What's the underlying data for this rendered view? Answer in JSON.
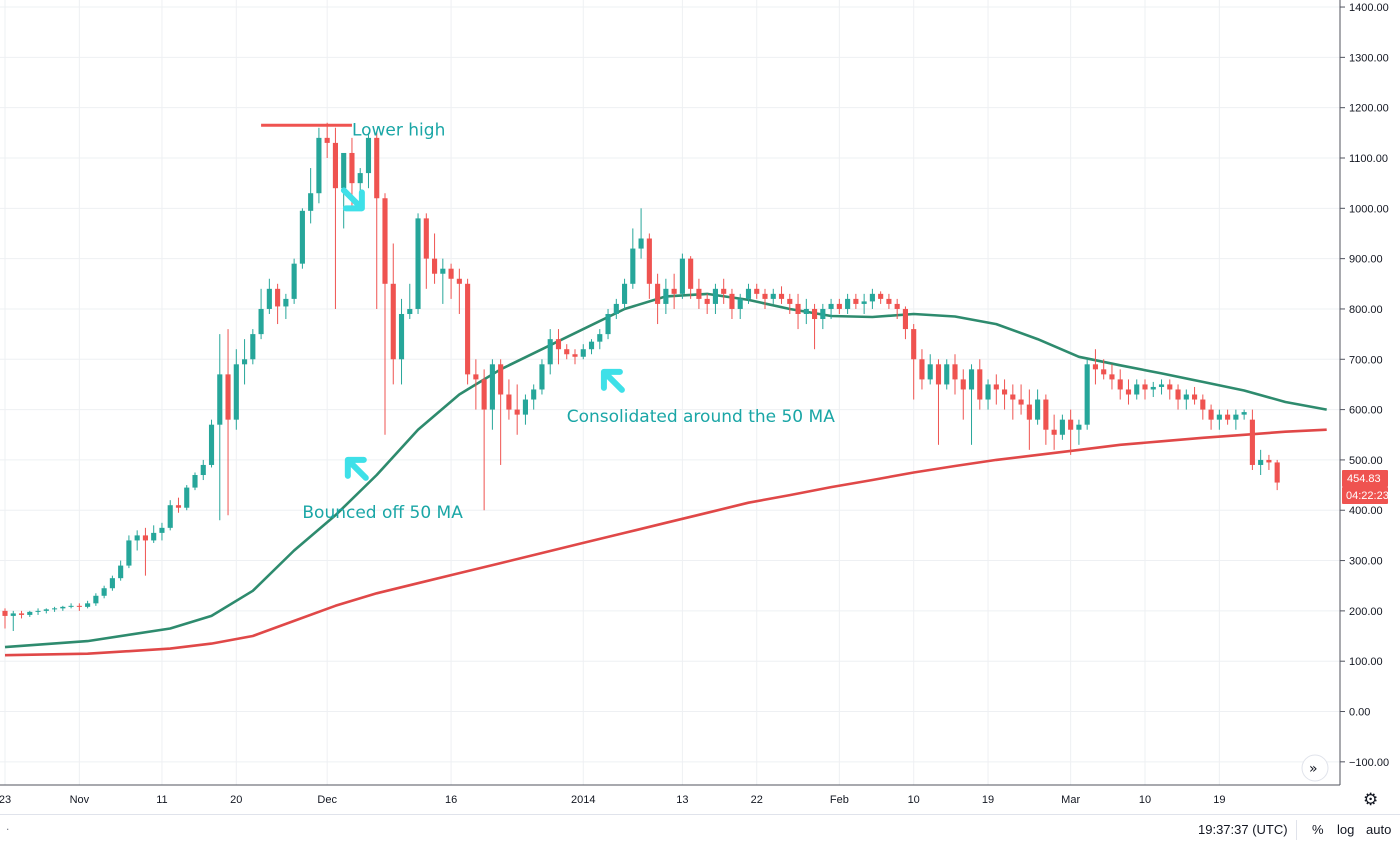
{
  "chart_data": {
    "type": "candlestick",
    "title": "",
    "y_ticks": [
      1400,
      1300,
      1200,
      1100,
      1000,
      900,
      800,
      700,
      600,
      500,
      400,
      300,
      200,
      100,
      0,
      -100
    ],
    "y_tick_labels": [
      "1400.00",
      "1300.00",
      "1200.00",
      "1100.00",
      "1000.00",
      "900.00",
      "800.00",
      "700.00",
      "600.00",
      "500.00",
      "400.00",
      "300.00",
      "200.00",
      "100.00",
      "0.00",
      "−100.00"
    ],
    "ylim": [
      -150,
      1410
    ],
    "x_index_range": [
      0,
      161
    ],
    "x_ticks": [
      {
        "label": "23",
        "index": 0
      },
      {
        "label": "Nov",
        "index": 9
      },
      {
        "label": "11",
        "index": 19
      },
      {
        "label": "20",
        "index": 28
      },
      {
        "label": "Dec",
        "index": 39
      },
      {
        "label": "16",
        "index": 54
      },
      {
        "label": "2014",
        "index": 70
      },
      {
        "label": "13",
        "index": 82
      },
      {
        "label": "22",
        "index": 91
      },
      {
        "label": "Feb",
        "index": 101
      },
      {
        "label": "10",
        "index": 110
      },
      {
        "label": "19",
        "index": 119
      },
      {
        "label": "Mar",
        "index": 129
      },
      {
        "label": "10",
        "index": 138
      },
      {
        "label": "19",
        "index": 147
      }
    ],
    "candles": [
      [
        200,
        205,
        165,
        190
      ],
      [
        190,
        200,
        160,
        195
      ],
      [
        195,
        200,
        185,
        192
      ],
      [
        192,
        200,
        188,
        198
      ],
      [
        198,
        205,
        192,
        200
      ],
      [
        200,
        205,
        195,
        203
      ],
      [
        203,
        208,
        198,
        205
      ],
      [
        205,
        210,
        200,
        208
      ],
      [
        208,
        215,
        205,
        210
      ],
      [
        210,
        215,
        200,
        208
      ],
      [
        208,
        220,
        205,
        215
      ],
      [
        215,
        235,
        210,
        230
      ],
      [
        230,
        250,
        225,
        245
      ],
      [
        245,
        270,
        240,
        265
      ],
      [
        265,
        300,
        260,
        290
      ],
      [
        290,
        350,
        285,
        340
      ],
      [
        340,
        360,
        320,
        350
      ],
      [
        350,
        365,
        270,
        340
      ],
      [
        340,
        370,
        335,
        355
      ],
      [
        355,
        375,
        340,
        365
      ],
      [
        365,
        420,
        360,
        410
      ],
      [
        410,
        425,
        395,
        405
      ],
      [
        405,
        450,
        400,
        445
      ],
      [
        445,
        475,
        440,
        470
      ],
      [
        470,
        500,
        460,
        490
      ],
      [
        490,
        580,
        485,
        570
      ],
      [
        570,
        750,
        380,
        670
      ],
      [
        670,
        760,
        390,
        580
      ],
      [
        580,
        720,
        560,
        690
      ],
      [
        690,
        740,
        650,
        700
      ],
      [
        700,
        760,
        690,
        750
      ],
      [
        750,
        840,
        740,
        800
      ],
      [
        800,
        860,
        790,
        840
      ],
      [
        840,
        850,
        770,
        805
      ],
      [
        805,
        830,
        780,
        820
      ],
      [
        820,
        900,
        810,
        890
      ],
      [
        890,
        1000,
        880,
        995
      ],
      [
        995,
        1080,
        970,
        1030
      ],
      [
        1030,
        1160,
        1010,
        1140
      ],
      [
        1140,
        1170,
        1100,
        1130
      ],
      [
        1130,
        1160,
        800,
        1040
      ],
      [
        1040,
        1100,
        960,
        1110
      ],
      [
        1110,
        1140,
        1000,
        1050
      ],
      [
        1050,
        1080,
        1000,
        1070
      ],
      [
        1070,
        1150,
        1040,
        1140
      ],
      [
        1140,
        1150,
        800,
        1020
      ],
      [
        1020,
        1030,
        550,
        850
      ],
      [
        850,
        930,
        650,
        700
      ],
      [
        700,
        820,
        650,
        790
      ],
      [
        790,
        850,
        780,
        800
      ],
      [
        800,
        990,
        790,
        980
      ],
      [
        980,
        990,
        840,
        900
      ],
      [
        900,
        950,
        850,
        870
      ],
      [
        870,
        900,
        810,
        880
      ],
      [
        880,
        890,
        820,
        860
      ],
      [
        860,
        880,
        790,
        850
      ],
      [
        850,
        860,
        650,
        670
      ],
      [
        670,
        700,
        600,
        660
      ],
      [
        660,
        680,
        400,
        600
      ],
      [
        600,
        700,
        560,
        690
      ],
      [
        690,
        700,
        490,
        630
      ],
      [
        630,
        660,
        580,
        600
      ],
      [
        600,
        650,
        550,
        590
      ],
      [
        590,
        630,
        570,
        620
      ],
      [
        620,
        650,
        600,
        640
      ],
      [
        640,
        700,
        630,
        690
      ],
      [
        690,
        760,
        670,
        740
      ],
      [
        740,
        760,
        690,
        720
      ],
      [
        720,
        730,
        700,
        710
      ],
      [
        710,
        720,
        690,
        705
      ],
      [
        705,
        730,
        700,
        720
      ],
      [
        720,
        740,
        710,
        735
      ],
      [
        735,
        760,
        720,
        750
      ],
      [
        750,
        800,
        740,
        790
      ],
      [
        790,
        820,
        780,
        810
      ],
      [
        810,
        860,
        800,
        850
      ],
      [
        850,
        960,
        840,
        920
      ],
      [
        920,
        1000,
        900,
        940
      ],
      [
        940,
        950,
        820,
        850
      ],
      [
        850,
        870,
        770,
        810
      ],
      [
        810,
        860,
        790,
        840
      ],
      [
        840,
        870,
        800,
        830
      ],
      [
        830,
        910,
        820,
        900
      ],
      [
        900,
        905,
        820,
        840
      ],
      [
        840,
        860,
        800,
        820
      ],
      [
        820,
        830,
        790,
        810
      ],
      [
        810,
        850,
        790,
        840
      ],
      [
        840,
        860,
        810,
        830
      ],
      [
        830,
        840,
        780,
        800
      ],
      [
        800,
        830,
        780,
        820
      ],
      [
        820,
        850,
        810,
        840
      ],
      [
        840,
        850,
        820,
        830
      ],
      [
        830,
        840,
        800,
        820
      ],
      [
        820,
        840,
        810,
        830
      ],
      [
        830,
        845,
        810,
        820
      ],
      [
        820,
        830,
        790,
        810
      ],
      [
        810,
        830,
        760,
        790
      ],
      [
        790,
        820,
        770,
        800
      ],
      [
        800,
        810,
        720,
        780
      ],
      [
        780,
        810,
        760,
        800
      ],
      [
        800,
        820,
        780,
        810
      ],
      [
        810,
        820,
        790,
        800
      ],
      [
        800,
        830,
        790,
        820
      ],
      [
        820,
        830,
        800,
        810
      ],
      [
        810,
        830,
        790,
        815
      ],
      [
        815,
        840,
        800,
        830
      ],
      [
        830,
        835,
        810,
        820
      ],
      [
        820,
        830,
        800,
        810
      ],
      [
        810,
        820,
        780,
        800
      ],
      [
        800,
        805,
        740,
        760
      ],
      [
        760,
        770,
        620,
        700
      ],
      [
        700,
        720,
        640,
        660
      ],
      [
        660,
        710,
        650,
        690
      ],
      [
        690,
        700,
        530,
        650
      ],
      [
        650,
        700,
        640,
        690
      ],
      [
        690,
        710,
        630,
        660
      ],
      [
        660,
        680,
        580,
        640
      ],
      [
        640,
        690,
        530,
        680
      ],
      [
        680,
        700,
        600,
        620
      ],
      [
        620,
        660,
        600,
        650
      ],
      [
        650,
        670,
        610,
        640
      ],
      [
        640,
        660,
        600,
        630
      ],
      [
        630,
        650,
        580,
        620
      ],
      [
        620,
        650,
        590,
        610
      ],
      [
        610,
        640,
        520,
        580
      ],
      [
        580,
        640,
        570,
        620
      ],
      [
        620,
        630,
        530,
        560
      ],
      [
        560,
        590,
        520,
        550
      ],
      [
        550,
        590,
        540,
        580
      ],
      [
        580,
        600,
        510,
        560
      ],
      [
        560,
        580,
        530,
        570
      ],
      [
        570,
        700,
        560,
        690
      ],
      [
        690,
        720,
        650,
        680
      ],
      [
        680,
        700,
        660,
        670
      ],
      [
        670,
        690,
        640,
        660
      ],
      [
        660,
        680,
        620,
        640
      ],
      [
        640,
        660,
        610,
        630
      ],
      [
        630,
        660,
        620,
        650
      ],
      [
        650,
        660,
        620,
        640
      ],
      [
        640,
        655,
        625,
        645
      ],
      [
        645,
        660,
        630,
        650
      ],
      [
        650,
        660,
        620,
        640
      ],
      [
        640,
        650,
        600,
        620
      ],
      [
        620,
        640,
        600,
        630
      ],
      [
        630,
        645,
        610,
        620
      ],
      [
        620,
        630,
        580,
        600
      ],
      [
        600,
        610,
        560,
        580
      ],
      [
        580,
        600,
        560,
        590
      ],
      [
        590,
        600,
        570,
        580
      ],
      [
        580,
        600,
        560,
        590
      ],
      [
        590,
        600,
        580,
        595
      ],
      [
        580,
        600,
        480,
        490
      ],
      [
        490,
        520,
        470,
        500
      ],
      [
        500,
        510,
        480,
        495
      ],
      [
        495,
        500,
        440,
        455
      ]
    ],
    "ma50": [
      [
        0,
        128
      ],
      [
        10,
        140
      ],
      [
        20,
        165
      ],
      [
        25,
        190
      ],
      [
        30,
        240
      ],
      [
        35,
        320
      ],
      [
        40,
        390
      ],
      [
        45,
        470
      ],
      [
        50,
        560
      ],
      [
        55,
        630
      ],
      [
        60,
        680
      ],
      [
        65,
        720
      ],
      [
        70,
        760
      ],
      [
        75,
        800
      ],
      [
        80,
        825
      ],
      [
        85,
        830
      ],
      [
        90,
        818
      ],
      [
        95,
        800
      ],
      [
        100,
        786
      ],
      [
        105,
        784
      ],
      [
        110,
        790
      ],
      [
        115,
        785
      ],
      [
        120,
        770
      ],
      [
        125,
        740
      ],
      [
        130,
        705
      ],
      [
        135,
        688
      ],
      [
        140,
        672
      ],
      [
        145,
        655
      ],
      [
        150,
        638
      ],
      [
        155,
        615
      ],
      [
        160,
        600
      ]
    ],
    "ma200": [
      [
        0,
        112
      ],
      [
        10,
        115
      ],
      [
        20,
        125
      ],
      [
        25,
        135
      ],
      [
        30,
        150
      ],
      [
        35,
        180
      ],
      [
        40,
        210
      ],
      [
        45,
        235
      ],
      [
        50,
        255
      ],
      [
        55,
        275
      ],
      [
        60,
        295
      ],
      [
        65,
        315
      ],
      [
        70,
        335
      ],
      [
        75,
        355
      ],
      [
        80,
        375
      ],
      [
        85,
        395
      ],
      [
        90,
        415
      ],
      [
        95,
        430
      ],
      [
        100,
        446
      ],
      [
        105,
        460
      ],
      [
        110,
        475
      ],
      [
        115,
        488
      ],
      [
        120,
        500
      ],
      [
        125,
        510
      ],
      [
        130,
        520
      ],
      [
        135,
        530
      ],
      [
        140,
        537
      ],
      [
        145,
        544
      ],
      [
        150,
        550
      ],
      [
        155,
        556
      ],
      [
        160,
        560
      ]
    ],
    "annotations": [
      {
        "text": "Lower high",
        "x": 42,
        "y": 1145
      },
      {
        "text": "Consolidated around the 50 MA",
        "x": 68,
        "y": 575
      },
      {
        "text": "Bounced off 50 MA",
        "x": 36,
        "y": 385
      }
    ],
    "resistance_line": {
      "value": 1165,
      "x_from": 31,
      "x_to": 42
    },
    "last_price_label": "454.83",
    "countdown_label": "04:22:23",
    "colors": {
      "up": "#26a69a",
      "down": "#ef5350",
      "ma50": "#2e8b6e",
      "ma200": "#e04848",
      "annotation": "#1aa6a6",
      "arrow": "#3ee0e8",
      "grid": "#eef0f3"
    }
  },
  "bottom_bar": {
    "clock": "19:37:37 (UTC)",
    "percent": "%",
    "log": "log",
    "auto": "auto",
    "dot": "."
  },
  "icons": {
    "scroll_right": "chevrons-right-icon",
    "settings": "gear-icon"
  }
}
